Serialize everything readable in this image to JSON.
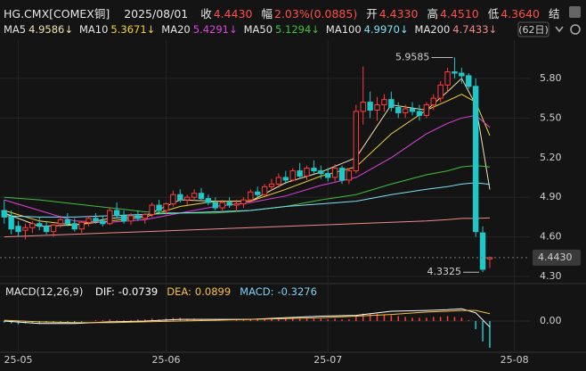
{
  "header": {
    "symbol": "HG.CMX[COMEX铜]",
    "date": "2025/08/01",
    "value_color": "#ff4d4d",
    "items": [
      {
        "label": "收",
        "value": "4.4430"
      },
      {
        "label": "幅",
        "value": "2.03%(0.0885)"
      },
      {
        "label": "开",
        "value": "4.4330"
      },
      {
        "label": "高",
        "value": "4.4510"
      },
      {
        "label": "低",
        "value": "4.3640"
      },
      {
        "label": "结"
      }
    ]
  },
  "period_label": "(62日)",
  "chart_data": {
    "type": "candlestick",
    "up_color": "#ff3b3b",
    "down_color": "#1ec8c8",
    "xlim": [
      -0.6,
      74.7
    ],
    "xticks": [
      {
        "value": 2,
        "label": "25-05"
      },
      {
        "value": 23,
        "label": "25-06"
      },
      {
        "value": 46,
        "label": "25-07"
      },
      {
        "value": 72.5,
        "label": "25-08"
      }
    ],
    "ylim": [
      4.246,
      6.09
    ],
    "yticks": [
      {
        "value": 5.8,
        "label": "5.80"
      },
      {
        "value": 5.5,
        "label": "5.50"
      },
      {
        "value": 5.2,
        "label": "5.20"
      },
      {
        "value": 4.9,
        "label": "4.90"
      },
      {
        "value": 4.6,
        "label": "4.60"
      },
      {
        "value": 4.3,
        "label": "4.30"
      }
    ],
    "grid": true,
    "candles": [
      [
        4.8,
        4.88,
        4.7,
        4.75
      ],
      [
        4.75,
        4.8,
        4.62,
        4.66
      ],
      [
        4.68,
        4.72,
        4.6,
        4.64
      ],
      [
        4.65,
        4.7,
        4.58,
        4.67
      ],
      [
        4.67,
        4.72,
        4.63,
        4.7
      ],
      [
        4.7,
        4.75,
        4.65,
        4.68
      ],
      [
        4.68,
        4.72,
        4.62,
        4.64
      ],
      [
        4.64,
        4.7,
        4.6,
        4.69
      ],
      [
        4.7,
        4.76,
        4.67,
        4.73
      ],
      [
        4.73,
        4.78,
        4.68,
        4.7
      ],
      [
        4.7,
        4.74,
        4.64,
        4.66
      ],
      [
        4.66,
        4.72,
        4.63,
        4.71
      ],
      [
        4.71,
        4.76,
        4.68,
        4.74
      ],
      [
        4.74,
        4.78,
        4.7,
        4.72
      ],
      [
        4.72,
        4.76,
        4.68,
        4.7
      ],
      [
        4.7,
        4.82,
        4.69,
        4.8
      ],
      [
        4.8,
        4.86,
        4.74,
        4.76
      ],
      [
        4.76,
        4.8,
        4.7,
        4.72
      ],
      [
        4.72,
        4.78,
        4.69,
        4.76
      ],
      [
        4.76,
        4.8,
        4.72,
        4.74
      ],
      [
        4.74,
        4.78,
        4.7,
        4.77
      ],
      [
        4.77,
        4.86,
        4.75,
        4.84
      ],
      [
        4.84,
        4.88,
        4.78,
        4.8
      ],
      [
        4.8,
        4.86,
        4.77,
        4.85
      ],
      [
        4.85,
        4.95,
        4.83,
        4.92
      ],
      [
        4.92,
        4.96,
        4.86,
        4.88
      ],
      [
        4.88,
        4.92,
        4.84,
        4.9
      ],
      [
        4.9,
        4.96,
        4.87,
        4.93
      ],
      [
        4.93,
        4.97,
        4.88,
        4.89
      ],
      [
        4.89,
        4.92,
        4.84,
        4.86
      ],
      [
        4.86,
        4.9,
        4.8,
        4.82
      ],
      [
        4.82,
        4.88,
        4.79,
        4.86
      ],
      [
        4.86,
        4.9,
        4.82,
        4.84
      ],
      [
        4.84,
        4.88,
        4.79,
        4.85
      ],
      [
        4.85,
        4.9,
        4.82,
        4.88
      ],
      [
        4.88,
        4.96,
        4.86,
        4.94
      ],
      [
        4.94,
        4.98,
        4.9,
        4.92
      ],
      [
        4.92,
        5.0,
        4.91,
        4.98
      ],
      [
        4.98,
        5.04,
        4.95,
        5.0
      ],
      [
        5.0,
        5.08,
        4.97,
        5.05
      ],
      [
        5.05,
        5.1,
        5.0,
        5.03
      ],
      [
        5.03,
        5.12,
        5.02,
        5.1
      ],
      [
        5.1,
        5.16,
        5.04,
        5.06
      ],
      [
        5.06,
        5.14,
        5.03,
        5.12
      ],
      [
        5.12,
        5.18,
        5.08,
        5.1
      ],
      [
        5.1,
        5.14,
        5.04,
        5.08
      ],
      [
        5.08,
        5.12,
        5.02,
        5.05
      ],
      [
        5.05,
        5.15,
        5.02,
        5.12
      ],
      [
        5.12,
        5.14,
        5.0,
        5.03
      ],
      [
        5.03,
        5.12,
        5.0,
        5.1
      ],
      [
        5.1,
        5.6,
        5.08,
        5.55
      ],
      [
        5.55,
        5.89,
        5.45,
        5.62
      ],
      [
        5.62,
        5.7,
        5.5,
        5.56
      ],
      [
        5.56,
        5.66,
        5.48,
        5.6
      ],
      [
        5.6,
        5.68,
        5.55,
        5.64
      ],
      [
        5.64,
        5.7,
        5.55,
        5.58
      ],
      [
        5.58,
        5.62,
        5.5,
        5.54
      ],
      [
        5.54,
        5.6,
        5.5,
        5.57
      ],
      [
        5.57,
        5.62,
        5.52,
        5.55
      ],
      [
        5.55,
        5.6,
        5.48,
        5.52
      ],
      [
        5.52,
        5.62,
        5.5,
        5.6
      ],
      [
        5.6,
        5.68,
        5.56,
        5.65
      ],
      [
        5.65,
        5.78,
        5.62,
        5.75
      ],
      [
        5.75,
        5.88,
        5.7,
        5.85
      ],
      [
        5.85,
        5.9585,
        5.8,
        5.84
      ],
      [
        5.84,
        5.88,
        5.76,
        5.82
      ],
      [
        5.82,
        5.84,
        5.72,
        5.74
      ],
      [
        5.74,
        5.8,
        4.6,
        4.64
      ],
      [
        4.63,
        4.68,
        4.3325,
        4.3545
      ],
      [
        4.433,
        4.451,
        4.364,
        4.443
      ]
    ],
    "max_label": 5.9585,
    "min_label": 4.3325,
    "label_color_max": "#ff5555",
    "label_color_min": "#33cc66",
    "last_price": {
      "value": 4.443,
      "label": "4.4430"
    },
    "ma_x": [
      0,
      5,
      10,
      15,
      20,
      25,
      30,
      35,
      40,
      45,
      50,
      55,
      60,
      63,
      65,
      67,
      69
    ],
    "ma_series": [
      {
        "name": "MA5",
        "color": "#f3e0b0",
        "value_label": "4.9586↓",
        "values": [
          4.78,
          4.68,
          4.69,
          4.74,
          4.76,
          4.88,
          4.87,
          4.87,
          5.01,
          5.09,
          5.2,
          5.6,
          5.56,
          5.7,
          5.8,
          5.6,
          4.9586
        ]
      },
      {
        "name": "MA10",
        "color": "#f2d22e",
        "value_label": "5.3671↓",
        "values": [
          4.8,
          4.72,
          4.69,
          4.72,
          4.75,
          4.83,
          4.87,
          4.87,
          4.96,
          5.06,
          5.13,
          5.38,
          5.56,
          5.63,
          5.68,
          5.62,
          5.3671
        ]
      },
      {
        "name": "MA20",
        "color": "#e040e0",
        "value_label": "5.4291↓",
        "values": [
          4.88,
          4.8,
          4.72,
          4.71,
          4.73,
          4.78,
          4.83,
          4.86,
          4.91,
          4.99,
          5.05,
          5.2,
          5.38,
          5.46,
          5.5,
          5.52,
          5.4291
        ]
      },
      {
        "name": "MA50",
        "color": "#3fbf3f",
        "value_label": "5.1294↓",
        "values": [
          4.9,
          4.88,
          4.85,
          4.82,
          4.79,
          4.78,
          4.78,
          4.8,
          4.83,
          4.88,
          4.92,
          5.0,
          5.07,
          5.1,
          5.13,
          5.14,
          5.1294
        ]
      },
      {
        "name": "MA100",
        "color": "#7fe0f5",
        "value_label": "4.9970↓",
        "values": [
          4.76,
          4.75,
          4.75,
          4.76,
          4.77,
          4.78,
          4.79,
          4.8,
          4.83,
          4.85,
          4.87,
          4.92,
          4.96,
          4.98,
          5.0,
          5.01,
          4.997
        ]
      },
      {
        "name": "MA200",
        "color": "#f08a8a",
        "value_label": "4.7433↓",
        "values": [
          4.6,
          4.61,
          4.62,
          4.63,
          4.64,
          4.65,
          4.66,
          4.67,
          4.68,
          4.69,
          4.7,
          4.71,
          4.72,
          4.73,
          4.74,
          4.74,
          4.7433
        ]
      }
    ],
    "macd": {
      "title": "MACD(12,26,9)",
      "ylim": [
        -0.35,
        0.24
      ],
      "yticks": [
        {
          "value": 0,
          "label": "0.00"
        }
      ],
      "lines": [
        {
          "name": "DIF:",
          "color": "#ffffff",
          "value_label": "-0.0739",
          "values": [
            0.0,
            -0.03,
            -0.03,
            -0.01,
            0.0,
            0.02,
            0.02,
            0.02,
            0.04,
            0.06,
            0.07,
            0.12,
            0.13,
            0.14,
            0.15,
            0.1,
            -0.0739
          ]
        },
        {
          "name": "DEA:",
          "color": "#f5c242",
          "value_label": "0.0899",
          "values": [
            0.01,
            -0.01,
            -0.02,
            -0.02,
            -0.01,
            0.0,
            0.01,
            0.02,
            0.03,
            0.04,
            0.06,
            0.08,
            0.11,
            0.12,
            0.13,
            0.13,
            0.0899
          ]
        }
      ],
      "histogram": {
        "name": "MACD:",
        "color": "#7fd0f5",
        "value_label": "-0.3276",
        "up_color": "#ff3b3b",
        "down_color": "#1ec8c8",
        "values": [
          -0.02,
          -0.03,
          -0.04,
          -0.03,
          -0.02,
          -0.03,
          -0.02,
          -0.02,
          -0.01,
          -0.01,
          -0.02,
          -0.01,
          0,
          0.01,
          0.01,
          0.02,
          0.01,
          0.01,
          0.01,
          0.02,
          0.02,
          0.03,
          0.02,
          0.03,
          0.04,
          0.04,
          0.03,
          0.03,
          0.02,
          0.01,
          0.01,
          0,
          0,
          0.01,
          0.01,
          0.02,
          0.02,
          0.03,
          0.03,
          0.04,
          0.03,
          0.04,
          0.03,
          0.03,
          0.03,
          0.03,
          0.02,
          0.03,
          0.02,
          0.02,
          0.06,
          0.09,
          0.09,
          0.09,
          0.08,
          0.07,
          0.06,
          0.05,
          0.04,
          0.04,
          0.04,
          0.05,
          0.05,
          0.06,
          0.05,
          0.04,
          0.01,
          -0.1,
          -0.25,
          -0.3276
        ]
      }
    }
  }
}
